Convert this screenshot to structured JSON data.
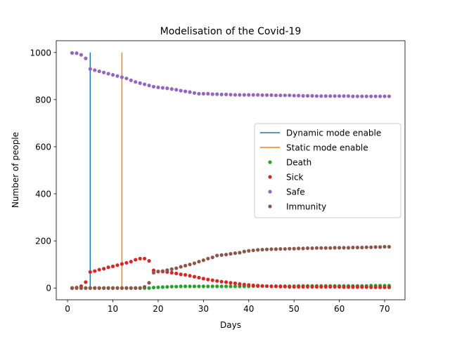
{
  "chart_data": {
    "type": "scatter",
    "title": "Modelisation of the Covid-19",
    "xlabel": "Days",
    "ylabel": "Number of people",
    "xlim": [
      -2.5,
      74.5
    ],
    "ylim": [
      -50,
      1050
    ],
    "xticks": [
      0,
      10,
      20,
      30,
      40,
      50,
      60,
      70
    ],
    "yticks": [
      0,
      200,
      400,
      600,
      800,
      1000
    ],
    "grid": false,
    "legend_position": "center-right",
    "vlines": [
      {
        "name": "Dynamic mode enable",
        "x": 5,
        "y_range": [
          0,
          1000
        ],
        "color": "#1f77b4"
      },
      {
        "name": "Static mode enable",
        "x": 12,
        "y_range": [
          0,
          1000
        ],
        "color": "#ff7f0e"
      }
    ],
    "x": [
      1,
      2,
      3,
      4,
      5,
      6,
      7,
      8,
      9,
      10,
      11,
      12,
      13,
      14,
      15,
      16,
      17,
      18,
      19,
      20,
      21,
      22,
      23,
      24,
      25,
      26,
      27,
      28,
      29,
      30,
      31,
      32,
      33,
      34,
      35,
      36,
      37,
      38,
      39,
      40,
      41,
      42,
      43,
      44,
      45,
      46,
      47,
      48,
      49,
      50,
      51,
      52,
      53,
      54,
      55,
      56,
      57,
      58,
      59,
      60,
      61,
      62,
      63,
      64,
      65,
      66,
      67,
      68,
      69,
      70,
      71
    ],
    "series": [
      {
        "name": "Death",
        "color": "#2ca02c",
        "values": [
          0,
          0,
          0,
          0,
          0,
          0,
          0,
          0,
          0,
          0,
          0,
          0,
          0,
          0,
          0,
          0,
          0,
          0,
          2,
          3,
          4,
          5,
          6,
          6,
          7,
          7,
          7,
          7,
          7,
          7,
          7,
          7,
          7,
          7,
          7,
          7,
          7,
          7,
          7,
          7,
          8,
          8,
          8,
          8,
          8,
          8,
          8,
          8,
          8,
          8,
          9,
          9,
          9,
          9,
          9,
          9,
          9,
          9,
          9,
          9,
          9,
          9,
          9,
          9,
          9,
          9,
          10,
          10,
          10,
          10,
          10
        ]
      },
      {
        "name": "Sick",
        "color": "#d62728",
        "values": [
          0,
          2,
          8,
          25,
          68,
          72,
          78,
          82,
          88,
          92,
          97,
          102,
          107,
          112,
          120,
          125,
          125,
          115,
          75,
          70,
          70,
          68,
          65,
          62,
          58,
          56,
          52,
          48,
          44,
          40,
          36,
          33,
          30,
          27,
          25,
          22,
          20,
          17,
          15,
          13,
          11,
          10,
          9,
          8,
          7,
          7,
          6,
          6,
          5,
          5,
          5,
          5,
          5,
          5,
          5,
          5,
          5,
          5,
          5,
          5,
          4,
          4,
          4,
          4,
          4,
          4,
          3,
          3,
          3,
          3,
          3
        ]
      },
      {
        "name": "Safe",
        "color": "#9467bd",
        "values": [
          998,
          997,
          990,
          975,
          930,
          925,
          920,
          915,
          910,
          905,
          900,
          895,
          890,
          882,
          875,
          870,
          865,
          860,
          855,
          852,
          850,
          848,
          845,
          842,
          838,
          835,
          832,
          828,
          825,
          825,
          825,
          823,
          823,
          822,
          822,
          821,
          820,
          820,
          820,
          820,
          820,
          820,
          819,
          819,
          819,
          818,
          818,
          818,
          818,
          817,
          817,
          816,
          816,
          816,
          815,
          815,
          815,
          815,
          815,
          815,
          815,
          815,
          814,
          814,
          814,
          814,
          814,
          814,
          814,
          814,
          814
        ]
      },
      {
        "name": "Immunity",
        "color": "#8c564b",
        "values": [
          0,
          0,
          0,
          0,
          0,
          0,
          0,
          0,
          0,
          0,
          0,
          0,
          0,
          0,
          0,
          0,
          5,
          22,
          65,
          70,
          72,
          76,
          80,
          84,
          90,
          95,
          100,
          105,
          112,
          118,
          125,
          130,
          138,
          140,
          142,
          145,
          148,
          150,
          155,
          158,
          160,
          162,
          163,
          164,
          165,
          165,
          166,
          166,
          167,
          167,
          168,
          168,
          169,
          169,
          170,
          170,
          170,
          170,
          171,
          171,
          171,
          171,
          172,
          172,
          172,
          173,
          173,
          174,
          174,
          175,
          175
        ]
      }
    ]
  }
}
